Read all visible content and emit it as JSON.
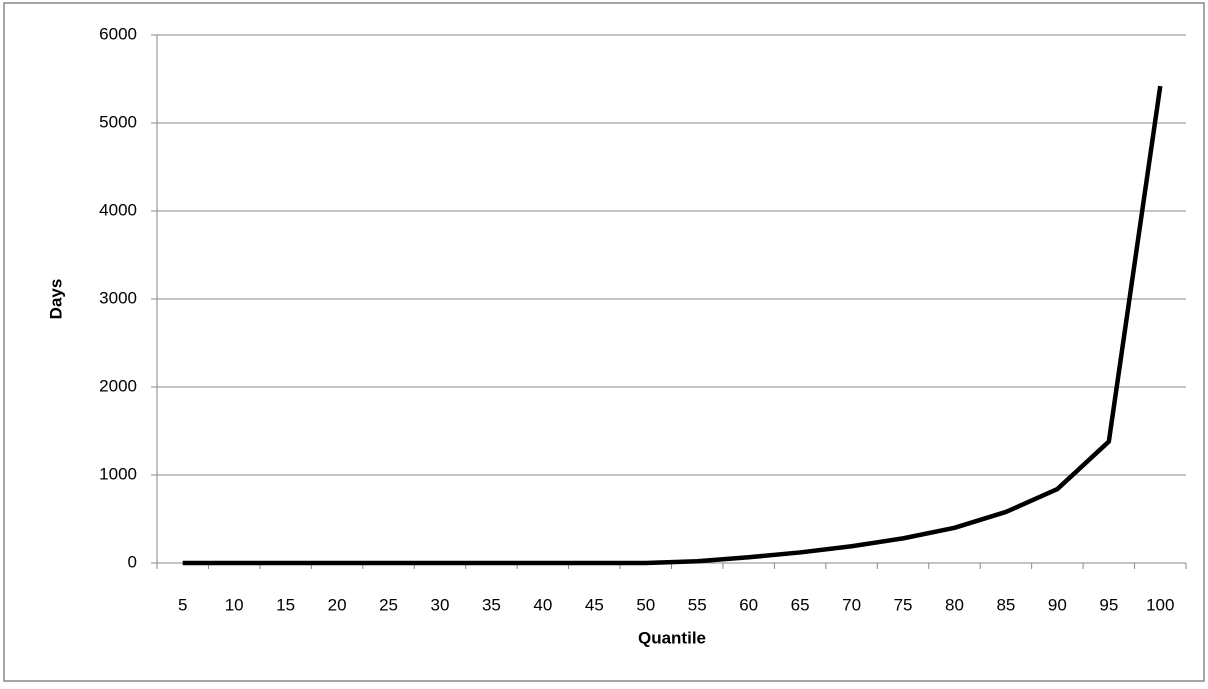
{
  "chart_data": {
    "type": "line",
    "x_label": "Quantile",
    "y_label": "Days",
    "categories": [
      "5",
      "10",
      "15",
      "20",
      "25",
      "30",
      "35",
      "40",
      "45",
      "50",
      "55",
      "60",
      "65",
      "70",
      "75",
      "80",
      "85",
      "90",
      "95",
      "100"
    ],
    "series": [
      {
        "color": "#000000",
        "values": [
          0,
          0,
          0,
          0,
          0,
          0,
          0,
          0,
          0,
          0,
          20,
          65,
          120,
          190,
          280,
          400,
          580,
          840,
          1380,
          5420
        ]
      }
    ],
    "ylim": [
      0,
      6000
    ],
    "yticks": [
      0,
      1000,
      2000,
      3000,
      4000,
      5000,
      6000
    ],
    "grid": true
  }
}
